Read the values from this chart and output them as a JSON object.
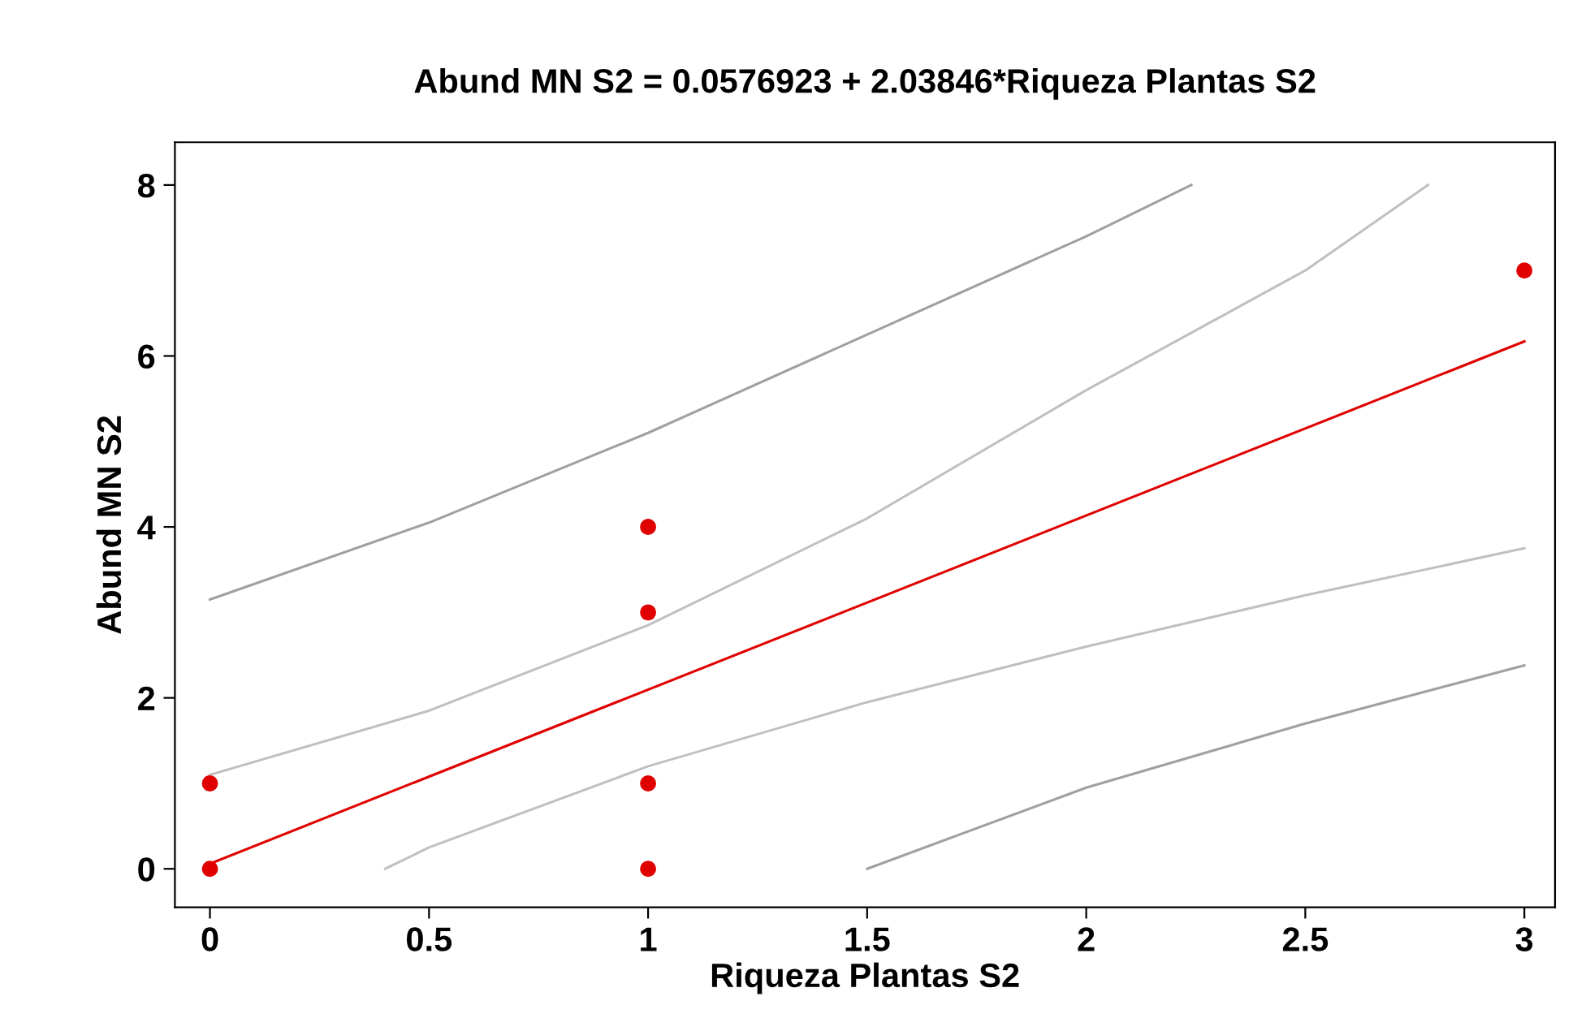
{
  "chart_data": {
    "type": "scatter",
    "title": "Abund MN S2 = 0.0576923 + 2.03846*Riqueza Plantas S2",
    "xlabel": "Riqueza Plantas S2",
    "ylabel": "Abund MN S2",
    "xlim": [
      -0.08,
      3.07
    ],
    "ylim": [
      -0.45,
      8.5
    ],
    "xticks": [
      0,
      0.5,
      1,
      1.5,
      2,
      2.5,
      3
    ],
    "yticks": [
      0,
      2,
      4,
      6,
      8
    ],
    "grid": false,
    "legend": false,
    "series": [
      {
        "type": "line",
        "color": "#a0a0a0",
        "marker": "none",
        "x": [
          0,
          0.5,
          1,
          1.5,
          2,
          2.24
        ],
        "values": [
          3.15,
          4.05,
          5.1,
          6.25,
          7.4,
          8.0
        ]
      },
      {
        "type": "line",
        "color": "#c0c0c0",
        "marker": "none",
        "x": [
          0,
          0.5,
          1,
          1.5,
          2,
          2.5,
          2.78
        ],
        "values": [
          1.1,
          1.85,
          2.85,
          4.1,
          5.6,
          7.0,
          8.0
        ]
      },
      {
        "type": "line",
        "color": "#e00000",
        "marker": "none",
        "x": [
          0,
          3
        ],
        "values": [
          0.06,
          6.17
        ]
      },
      {
        "type": "line",
        "color": "#c0c0c0",
        "marker": "none",
        "x": [
          0.4,
          0.5,
          1,
          1.5,
          2,
          2.5,
          3
        ],
        "values": [
          0,
          0.25,
          1.2,
          1.95,
          2.6,
          3.2,
          3.75
        ]
      },
      {
        "type": "line",
        "color": "#a0a0a0",
        "marker": "none",
        "x": [
          1.5,
          2,
          2.5,
          3
        ],
        "values": [
          0,
          0.95,
          1.7,
          2.38
        ]
      },
      {
        "color": "#e00000",
        "marker": "circle",
        "x": [
          0,
          0,
          1,
          1,
          1,
          1,
          3
        ],
        "values": [
          0,
          1,
          0,
          1,
          3,
          4,
          7
        ]
      }
    ]
  }
}
